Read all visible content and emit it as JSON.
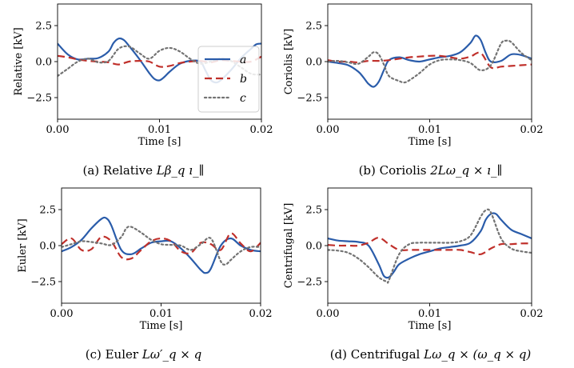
{
  "line_styles": {
    "a": {
      "color": "#2a5caa",
      "dash": ""
    },
    "b": {
      "color": "#c0302b",
      "dash": "9,5"
    },
    "c": {
      "color": "#737373",
      "dash": "2.2,3.3"
    }
  },
  "chart_data": [
    {
      "type": "line",
      "title": "",
      "ylabel": "Relative [kV]",
      "xlabel": "Time [s]",
      "caption_prefix": "(a) Relative",
      "caption_math": "Lβ_q ı_∥",
      "xlim": [
        0,
        0.02
      ],
      "ylim": [
        -4,
        4
      ],
      "xticks": [
        0,
        0.01,
        0.02
      ],
      "xtick_labels": [
        "0.00",
        "0.01",
        "0.02"
      ],
      "yticks": [
        2.5,
        0,
        -2.5
      ],
      "ytick_labels": [
        "2.5",
        "0.0",
        "−2.5"
      ],
      "grid": false,
      "legend": {
        "position": "center-right",
        "entries": [
          "a",
          "b",
          "c"
        ]
      },
      "series": [
        {
          "name": "a",
          "style": "a",
          "x": [
            0,
            0.001,
            0.002,
            0.003,
            0.004,
            0.005,
            0.0055,
            0.006,
            0.0065,
            0.007,
            0.008,
            0.009,
            0.0095,
            0.01,
            0.0105,
            0.011,
            0.012,
            0.013,
            0.014,
            0.0145,
            0.015,
            0.0155,
            0.016,
            0.017,
            0.018,
            0.019,
            0.0195,
            0.02
          ],
          "y": [
            1.25,
            0.5,
            0.15,
            0.2,
            0.25,
            0.7,
            1.3,
            1.6,
            1.5,
            1.1,
            0.2,
            -0.8,
            -1.2,
            -1.3,
            -1.05,
            -0.7,
            -0.15,
            0.05,
            0,
            -0.6,
            -1.25,
            -1.45,
            -1.3,
            -0.6,
            0.25,
            0.9,
            1.2,
            1.25
          ]
        },
        {
          "name": "b",
          "style": "b",
          "x": [
            0,
            0.001,
            0.002,
            0.003,
            0.004,
            0.005,
            0.006,
            0.007,
            0.008,
            0.009,
            0.01,
            0.011,
            0.012,
            0.013,
            0.014,
            0.015,
            0.016,
            0.017,
            0.018,
            0.019,
            0.02
          ],
          "y": [
            0.4,
            0.3,
            0.15,
            0.05,
            0,
            -0.05,
            -0.2,
            0,
            0.05,
            0,
            -0.35,
            -0.3,
            -0.1,
            0,
            0.05,
            -0.05,
            0.1,
            0.05,
            0,
            0,
            0.35
          ]
        },
        {
          "name": "c",
          "style": "c",
          "x": [
            0,
            0.001,
            0.002,
            0.003,
            0.004,
            0.005,
            0.006,
            0.007,
            0.008,
            0.009,
            0.01,
            0.011,
            0.012,
            0.013,
            0.014,
            0.015,
            0.016,
            0.017,
            0.018,
            0.019,
            0.02
          ],
          "y": [
            -1.0,
            -0.5,
            0,
            0.2,
            -0.05,
            0.05,
            0.9,
            1.05,
            0.6,
            0.2,
            0.75,
            0.95,
            0.7,
            0.2,
            -0.15,
            0,
            0.2,
            0.05,
            -0.4,
            -0.85,
            -0.9
          ]
        }
      ]
    },
    {
      "type": "line",
      "title": "",
      "ylabel": "Coriolis [kV]",
      "xlabel": "Time [s]",
      "caption_prefix": "(b) Coriolis",
      "caption_math": "2Lω_q × ı_∥",
      "xlim": [
        0,
        0.02
      ],
      "ylim": [
        -4,
        4
      ],
      "xticks": [
        0,
        0.01,
        0.02
      ],
      "xtick_labels": [
        "0.00",
        "0.01",
        "0.02"
      ],
      "yticks": [
        2.5,
        0,
        -2.5
      ],
      "ytick_labels": [
        "2.5",
        "0.0",
        "−2.5"
      ],
      "grid": false,
      "series": [
        {
          "name": "a",
          "style": "a",
          "x": [
            0,
            0.001,
            0.002,
            0.003,
            0.0035,
            0.004,
            0.0045,
            0.005,
            0.0055,
            0.006,
            0.007,
            0.008,
            0.009,
            0.01,
            0.011,
            0.012,
            0.013,
            0.014,
            0.0145,
            0.015,
            0.0155,
            0.016,
            0.017,
            0.018,
            0.019,
            0.02
          ],
          "y": [
            0,
            -0.1,
            -0.25,
            -0.7,
            -1.1,
            -1.55,
            -1.75,
            -1.4,
            -0.6,
            0.1,
            0.3,
            0.1,
            0,
            0.15,
            0.3,
            0.4,
            0.65,
            1.3,
            1.8,
            1.5,
            0.6,
            0,
            0.05,
            0.5,
            0.45,
            0.2
          ]
        },
        {
          "name": "b",
          "style": "b",
          "x": [
            0,
            0.001,
            0.002,
            0.003,
            0.004,
            0.005,
            0.006,
            0.007,
            0.008,
            0.009,
            0.01,
            0.011,
            0.012,
            0.013,
            0.014,
            0.015,
            0.016,
            0.017,
            0.018,
            0.019,
            0.02
          ],
          "y": [
            0.1,
            0,
            0,
            -0.05,
            0.05,
            0.05,
            0.1,
            0.2,
            0.3,
            0.35,
            0.4,
            0.4,
            0.3,
            0.2,
            0.35,
            0.6,
            -0.4,
            -0.35,
            -0.3,
            -0.25,
            -0.2
          ]
        },
        {
          "name": "c",
          "style": "c",
          "x": [
            0,
            0.001,
            0.002,
            0.003,
            0.004,
            0.0045,
            0.005,
            0.0055,
            0.006,
            0.007,
            0.0075,
            0.008,
            0.009,
            0.01,
            0.011,
            0.012,
            0.013,
            0.014,
            0.015,
            0.016,
            0.017,
            0.0175,
            0.018,
            0.019,
            0.02
          ],
          "y": [
            0,
            0.05,
            -0.05,
            -0.15,
            0.35,
            0.65,
            0.5,
            -0.2,
            -1.0,
            -1.35,
            -1.45,
            -1.3,
            -0.8,
            -0.2,
            0.1,
            0.15,
            0.1,
            -0.1,
            -0.6,
            -0.25,
            1.25,
            1.45,
            1.35,
            0.6,
            0.1
          ]
        }
      ]
    },
    {
      "type": "line",
      "title": "",
      "ylabel": "Euler [kV]",
      "xlabel": "Time [s]",
      "caption_prefix": "(c) Euler",
      "caption_math": "Lω′_q × q",
      "xlim": [
        0,
        0.02
      ],
      "ylim": [
        -4,
        4
      ],
      "xticks": [
        0,
        0.01,
        0.02
      ],
      "xtick_labels": [
        "0.00",
        "0.01",
        "0.02"
      ],
      "yticks": [
        2.5,
        0,
        -2.5
      ],
      "ytick_labels": [
        "2.5",
        "0.0",
        "−2.5"
      ],
      "grid": false,
      "series": [
        {
          "name": "a",
          "style": "a",
          "x": [
            0,
            0.001,
            0.002,
            0.003,
            0.004,
            0.0045,
            0.005,
            0.006,
            0.007,
            0.008,
            0.009,
            0.01,
            0.011,
            0.012,
            0.013,
            0.014,
            0.0145,
            0.015,
            0.016,
            0.017,
            0.018,
            0.019,
            0.02
          ],
          "y": [
            -0.4,
            -0.1,
            0.4,
            1.2,
            1.85,
            1.9,
            1.4,
            -0.3,
            -0.6,
            -0.2,
            0.2,
            0.3,
            0.3,
            -0.2,
            -0.9,
            -1.7,
            -1.9,
            -1.6,
            0,
            0.5,
            0,
            -0.3,
            -0.4
          ]
        },
        {
          "name": "b",
          "style": "b",
          "x": [
            0,
            0.001,
            0.002,
            0.003,
            0.004,
            0.005,
            0.006,
            0.007,
            0.008,
            0.009,
            0.01,
            0.011,
            0.012,
            0.013,
            0.014,
            0.015,
            0.016,
            0.017,
            0.018,
            0.019,
            0.02
          ],
          "y": [
            0.1,
            0.5,
            -0.3,
            -0.25,
            0.6,
            0.3,
            -0.8,
            -0.9,
            -0.3,
            0.3,
            0.5,
            0.3,
            -0.4,
            -0.5,
            0.2,
            0.1,
            -0.3,
            0.85,
            0.15,
            -0.4,
            0.2
          ]
        },
        {
          "name": "c",
          "style": "c",
          "x": [
            0,
            0.001,
            0.002,
            0.003,
            0.004,
            0.005,
            0.006,
            0.0065,
            0.007,
            0.008,
            0.009,
            0.01,
            0.011,
            0.012,
            0.013,
            0.014,
            0.015,
            0.016,
            0.0165,
            0.017,
            0.018,
            0.019,
            0.02
          ],
          "y": [
            -0.1,
            0.1,
            0.3,
            0.25,
            0.15,
            0.05,
            0.6,
            1.2,
            1.3,
            0.9,
            0.4,
            0.1,
            0.05,
            0,
            -0.3,
            0.1,
            0.5,
            -1.1,
            -1.3,
            -1.0,
            -0.4,
            -0.1,
            -0.1
          ]
        }
      ]
    },
    {
      "type": "line",
      "title": "",
      "ylabel": "Centrifugal [kV]",
      "xlabel": "Time [s]",
      "caption_prefix": "(d) Centrifugal",
      "caption_math": "Lω_q × (ω_q × q)",
      "xlim": [
        0,
        0.02
      ],
      "ylim": [
        -4,
        4
      ],
      "xticks": [
        0,
        0.01,
        0.02
      ],
      "xtick_labels": [
        "0.00",
        "0.01",
        "0.02"
      ],
      "yticks": [
        2.5,
        0,
        -2.5
      ],
      "ytick_labels": [
        "2.5",
        "0.0",
        "−2.5"
      ],
      "grid": false,
      "series": [
        {
          "name": "a",
          "style": "a",
          "x": [
            0,
            0.001,
            0.002,
            0.003,
            0.004,
            0.005,
            0.0055,
            0.006,
            0.0065,
            0.007,
            0.008,
            0.009,
            0.01,
            0.011,
            0.012,
            0.013,
            0.014,
            0.015,
            0.0155,
            0.016,
            0.0165,
            0.017,
            0.018,
            0.019,
            0.02
          ],
          "y": [
            0.5,
            0.35,
            0.3,
            0.25,
            0,
            -1.3,
            -2.1,
            -2.2,
            -1.8,
            -1.3,
            -0.9,
            -0.6,
            -0.4,
            -0.2,
            -0.1,
            0,
            0.2,
            1.0,
            1.8,
            2.2,
            2.2,
            1.8,
            1.1,
            0.8,
            0.5
          ]
        },
        {
          "name": "b",
          "style": "b",
          "x": [
            0,
            0.001,
            0.002,
            0.003,
            0.004,
            0.005,
            0.006,
            0.007,
            0.008,
            0.009,
            0.01,
            0.011,
            0.012,
            0.013,
            0.014,
            0.015,
            0.016,
            0.017,
            0.018,
            0.019,
            0.02
          ],
          "y": [
            0.05,
            0,
            0,
            0,
            0.2,
            0.55,
            0.1,
            -0.3,
            -0.3,
            -0.3,
            -0.3,
            -0.3,
            -0.3,
            -0.3,
            -0.45,
            -0.6,
            -0.2,
            0.1,
            0.1,
            0.15,
            0.15
          ]
        },
        {
          "name": "c",
          "style": "c",
          "x": [
            0,
            0.001,
            0.002,
            0.003,
            0.004,
            0.005,
            0.0058,
            0.006,
            0.007,
            0.008,
            0.009,
            0.01,
            0.011,
            0.012,
            0.013,
            0.014,
            0.015,
            0.0155,
            0.016,
            0.017,
            0.018,
            0.019,
            0.02
          ],
          "y": [
            -0.3,
            -0.35,
            -0.5,
            -0.9,
            -1.5,
            -2.2,
            -2.5,
            -2.4,
            -0.6,
            0.1,
            0.2,
            0.2,
            0.2,
            0.2,
            0.3,
            0.7,
            2.0,
            2.45,
            2.3,
            0.5,
            -0.2,
            -0.4,
            -0.5
          ]
        }
      ]
    }
  ]
}
